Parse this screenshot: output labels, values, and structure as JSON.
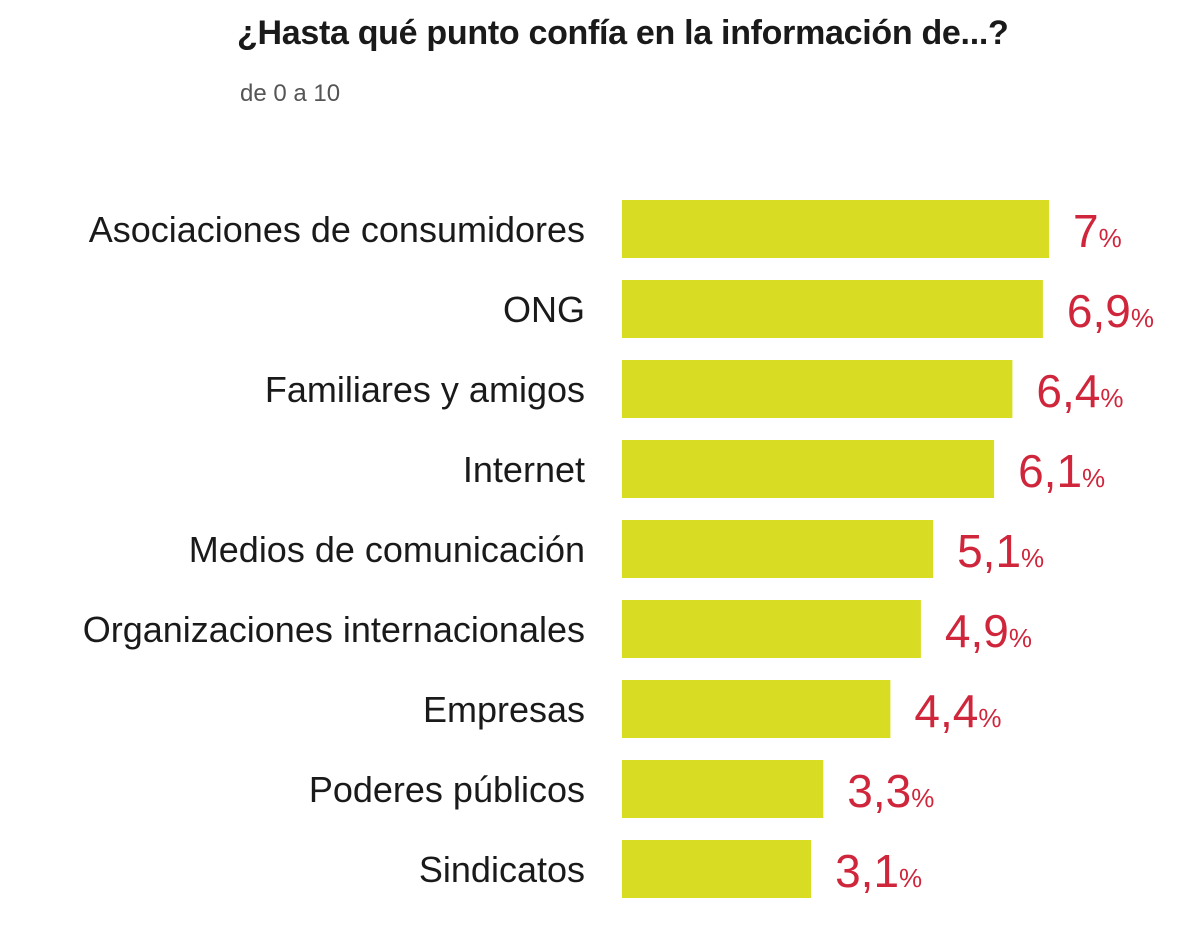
{
  "chart_data": {
    "type": "bar",
    "orientation": "horizontal",
    "title": "¿Hasta qué punto confía en la información de...?",
    "subtitle": "de 0 a 10",
    "categories": [
      "Asociaciones de consumidores",
      "ONG",
      "Familiares y amigos",
      "Internet",
      "Medios de comunicación",
      "Organizaciones internacionales",
      "Empresas",
      "Poderes públicos",
      "Sindicatos"
    ],
    "values": [
      7,
      6.9,
      6.4,
      6.1,
      5.1,
      4.9,
      4.4,
      3.3,
      3.1
    ],
    "value_labels": [
      "7",
      "6,9",
      "6,4",
      "6,1",
      "5,1",
      "4,9",
      "4,4",
      "3,3",
      "3,1"
    ],
    "value_unit": "%",
    "xlim": [
      0,
      10
    ],
    "grid": false,
    "legend": "none",
    "colors": {
      "bar": "#d8dc22",
      "value_text": "#d0263c"
    }
  }
}
